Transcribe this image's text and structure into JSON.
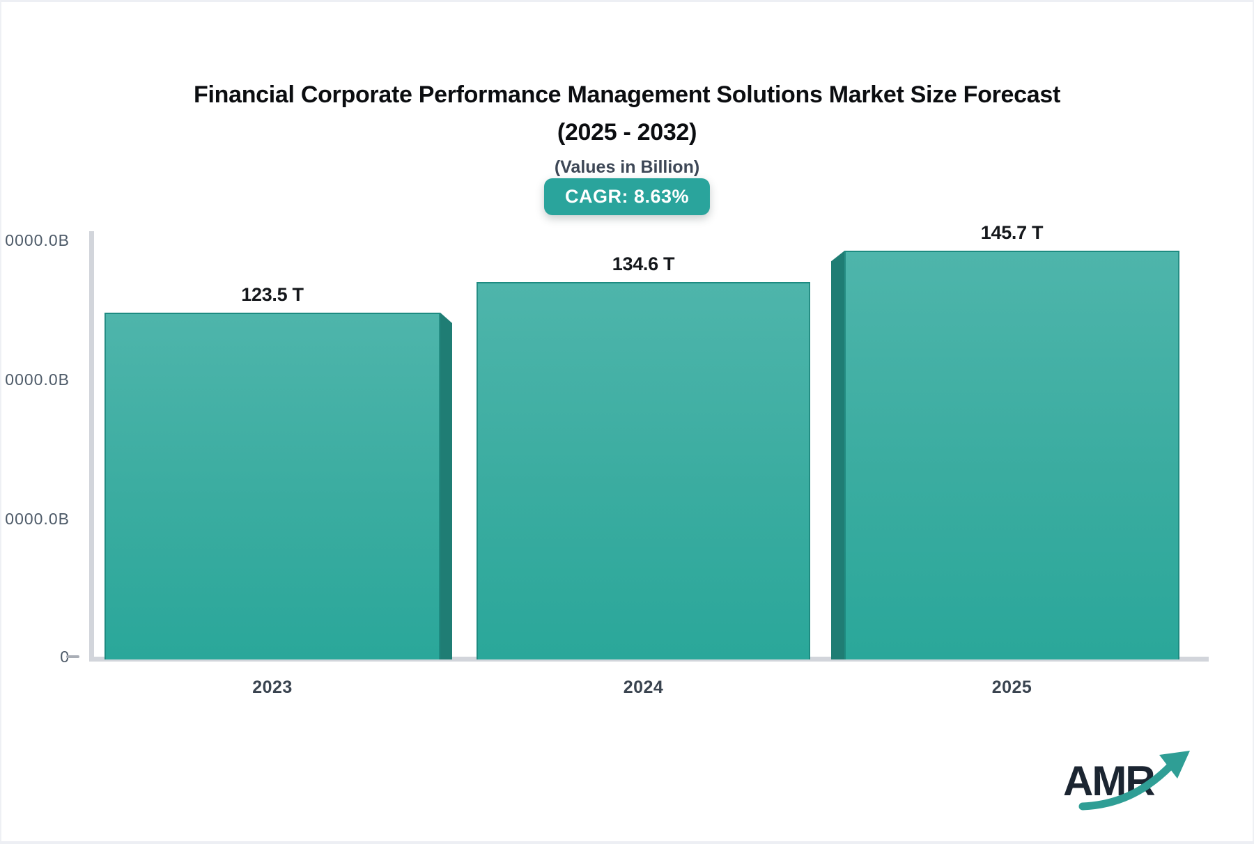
{
  "header": {
    "title_line1": "Financial Corporate Performance Management Solutions Market Size Forecast",
    "title_line2": "(2025 - 2032)",
    "subtitle": "(Values in Billion)",
    "cagr_label": "CAGR: 8.63%"
  },
  "logo": {
    "text": "AMR"
  },
  "colors": {
    "accent_teal": "#2aa49c",
    "bar_top": "#4eb5ab",
    "bar_bottom": "#2aa79a",
    "bar_side": "#1f7d74",
    "axis_line": "#d2d5db",
    "tick_text": "#4d5a68",
    "year_text": "#39434f",
    "logo_text": "#1b2531",
    "logo_arrow": "#2f9e95"
  },
  "chart_data": {
    "type": "bar",
    "title": "Financial Corporate Performance Management Solutions Market Size Forecast (2025 - 2032)",
    "subtitle": "(Values in Billion)",
    "cagr": "CAGR: 8.63%",
    "categories": [
      "2023",
      "2024",
      "2025"
    ],
    "values": [
      123.5,
      134.6,
      145.7
    ],
    "value_labels": [
      "123.5 T",
      "134.6 T",
      "145.7 T"
    ],
    "unit": "T (trillions), axis in Billions",
    "xlabel": "",
    "ylabel": "",
    "y_tick_labels": [
      "0000.0B",
      "0000.0B",
      "0000.0B",
      "0"
    ],
    "ylim": [
      0,
      150
    ],
    "grid": false,
    "legend": false,
    "bar_style": "teal gradient with 3D side bevel"
  }
}
